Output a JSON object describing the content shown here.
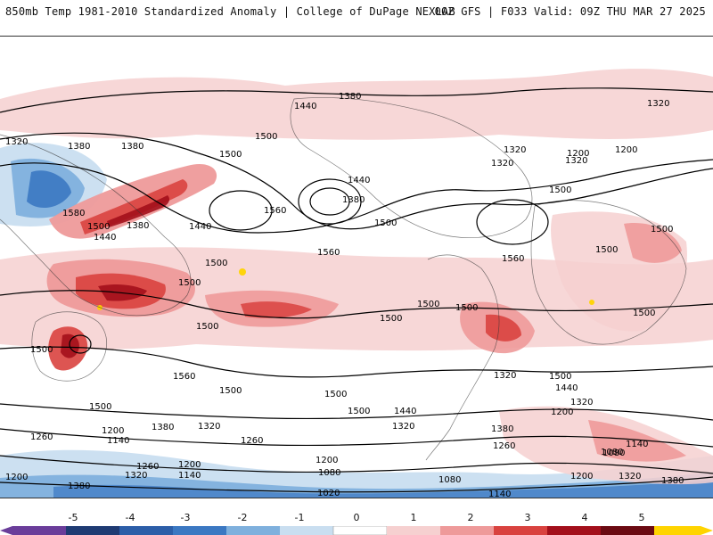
{
  "header": {
    "title_left": "850mb Temp 1981-2010 Standardized Anomaly | College of DuPage NEXLAB",
    "title_right": "00Z GFS | F033 Valid: 09Z THU MAR 27 2025"
  },
  "map": {
    "field": "850mb temperature standardized anomaly",
    "colors": {
      "neg5": "#6a3d9a",
      "neg4": "#1f3b73",
      "neg3": "#3b78c2",
      "neg2": "#7fb0dd",
      "neg1": "#c9def0",
      "zero": "#ffffff",
      "pos1": "#f6d0d0",
      "pos2": "#ee9a9a",
      "pos3": "#d9423f",
      "pos4": "#a30f1b",
      "pos5": "#ffd400"
    },
    "contour_labels": [
      "1380",
      "1440",
      "1320",
      "1320",
      "1380",
      "1380",
      "1500",
      "1500",
      "1320",
      "1440",
      "1320",
      "1200",
      "1560",
      "1380",
      "1320",
      "1500",
      "1580",
      "1380",
      "1440",
      "1500",
      "1500",
      "1500",
      "1440",
      "1200",
      "1560",
      "1560",
      "1500",
      "1500",
      "1500",
      "1500",
      "1500",
      "1500",
      "1500",
      "1500",
      "1500",
      "1500",
      "1560",
      "1500",
      "1500",
      "1500",
      "1440",
      "1500",
      "1440",
      "1320",
      "1320",
      "1200",
      "1380",
      "1380",
      "1320",
      "1260",
      "1200",
      "1140",
      "1260",
      "1080",
      "1140",
      "1260",
      "1200",
      "1320",
      "1200",
      "1140",
      "1080",
      "1020",
      "1080",
      "1200",
      "1320",
      "1380",
      "1320",
      "1140",
      "1080",
      "1200",
      "1260",
      "1140",
      "1320",
      "1200",
      "1380",
      "1320",
      "1260",
      "1080"
    ]
  },
  "colorbar": {
    "tick_labels": [
      "-5",
      "-4",
      "-3",
      "-2",
      "-1",
      "0",
      "1",
      "2",
      "3",
      "4",
      "5"
    ],
    "bins": [
      "#6a3d9a",
      "#1f3b73",
      "#2c5ea8",
      "#3b78c2",
      "#7fb0dd",
      "#c9def0",
      "#ffffff",
      "#f6d0d0",
      "#ee9a9a",
      "#d9423f",
      "#a30f1b",
      "#6b0a12",
      "#ffd400"
    ]
  }
}
